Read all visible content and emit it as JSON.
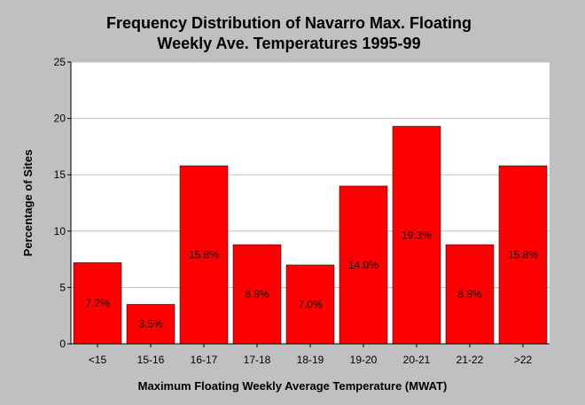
{
  "chart_data": {
    "type": "bar",
    "title_line1": "Frequency Distribution of Navarro Max. Floating",
    "title_line2": "Weekly Ave. Temperatures 1995-99",
    "xlabel": "Maximum Floating Weekly Average Temperature (MWAT)",
    "ylabel": "Percentage of Sites",
    "categories": [
      "<15",
      "15-16",
      "16-17",
      "17-18",
      "18-19",
      "19-20",
      "20-21",
      "21-22",
      ">22"
    ],
    "values": [
      7.2,
      3.5,
      15.8,
      8.8,
      7.0,
      14.0,
      19.3,
      8.8,
      15.8
    ],
    "data_labels": [
      "7.2%",
      "3.5%",
      "15.8%",
      "8.8%",
      "7.0%",
      "14.0%",
      "19.3%",
      "8.8%",
      "15.8%"
    ],
    "ylim": [
      0,
      25
    ],
    "yticks": [
      0,
      5,
      10,
      15,
      20,
      25
    ],
    "grid": true,
    "bar_color": "#ff0000",
    "plot_background": "#ffffff",
    "background": "#c0c0c0"
  }
}
